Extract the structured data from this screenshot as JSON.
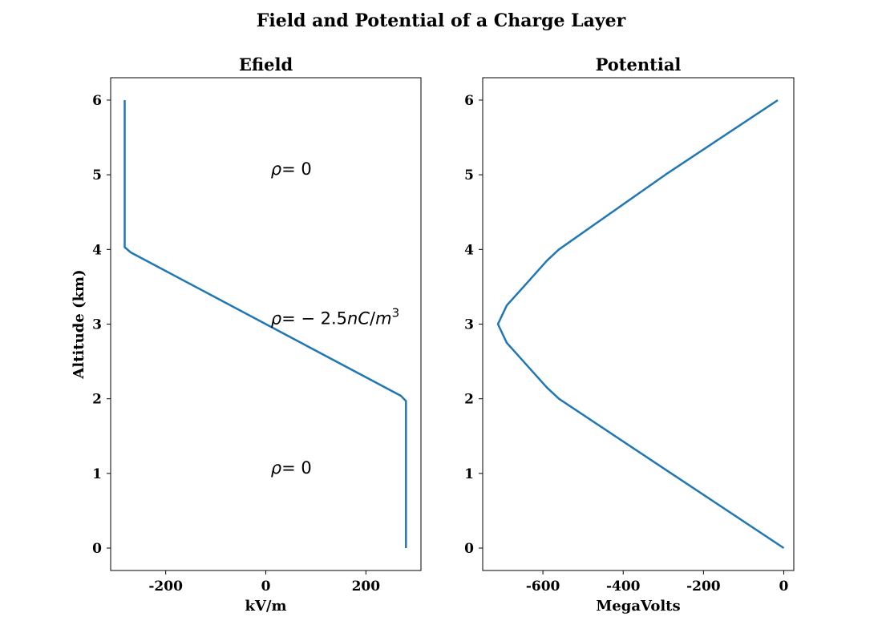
{
  "figure": {
    "title": "Field and Potential of a Charge Layer"
  },
  "chart_data": [
    {
      "type": "line",
      "title": "Efield",
      "xlabel": "kV/m",
      "ylabel": "Altitude (km)",
      "xlim": [
        -310,
        310
      ],
      "ylim": [
        -0.3,
        6.3
      ],
      "xticks": [
        -200,
        0,
        200
      ],
      "xtick_labels": [
        "-200",
        "0",
        "200"
      ],
      "yticks": [
        0,
        1,
        2,
        3,
        4,
        5,
        6
      ],
      "ytick_labels": [
        "0",
        "1",
        "2",
        "3",
        "4",
        "5",
        "6"
      ],
      "color": "#1f77b4",
      "series": [
        {
          "x": [
            280,
            280,
            270,
            0,
            -270,
            -282,
            -282
          ],
          "y": [
            0,
            1.97,
            2.04,
            3.0,
            3.96,
            4.03,
            6.0
          ]
        }
      ],
      "annotations": [
        {
          "parts": [
            [
              "ρ",
              true
            ],
            [
              "= 0",
              false
            ]
          ],
          "x": 10,
          "y": 5.0
        },
        {
          "parts": [
            [
              "ρ",
              true
            ],
            [
              "= − 2.5",
              false
            ],
            [
              "nC",
              true
            ],
            [
              "/",
              false
            ],
            [
              "m",
              true
            ]
          ],
          "sup": "3",
          "x": 10,
          "y": 3.0
        },
        {
          "parts": [
            [
              "ρ",
              true
            ],
            [
              "= 0",
              false
            ]
          ],
          "x": 10,
          "y": 1.0
        }
      ]
    },
    {
      "type": "line",
      "title": "Potential",
      "xlabel": "MegaVolts",
      "ylabel": "",
      "xlim": [
        -750,
        25
      ],
      "ylim": [
        -0.3,
        6.3
      ],
      "xticks": [
        -600,
        -400,
        -200,
        0
      ],
      "xtick_labels": [
        "-600",
        "-400",
        "-200",
        "0"
      ],
      "yticks": [
        0,
        1,
        2,
        3,
        4,
        5,
        6
      ],
      "ytick_labels": [
        "0",
        "1",
        "2",
        "3",
        "4",
        "5",
        "6"
      ],
      "color": "#1f77b4",
      "series": [
        {
          "x": [
            0,
            -280,
            -560,
            -590,
            -640,
            -690,
            -712,
            -690,
            -640,
            -590,
            -560,
            -295,
            -15
          ],
          "y": [
            0,
            1.0,
            2.0,
            2.15,
            2.45,
            2.75,
            3.0,
            3.25,
            3.55,
            3.85,
            4.0,
            5.0,
            6.0
          ]
        }
      ],
      "annotations": []
    }
  ]
}
